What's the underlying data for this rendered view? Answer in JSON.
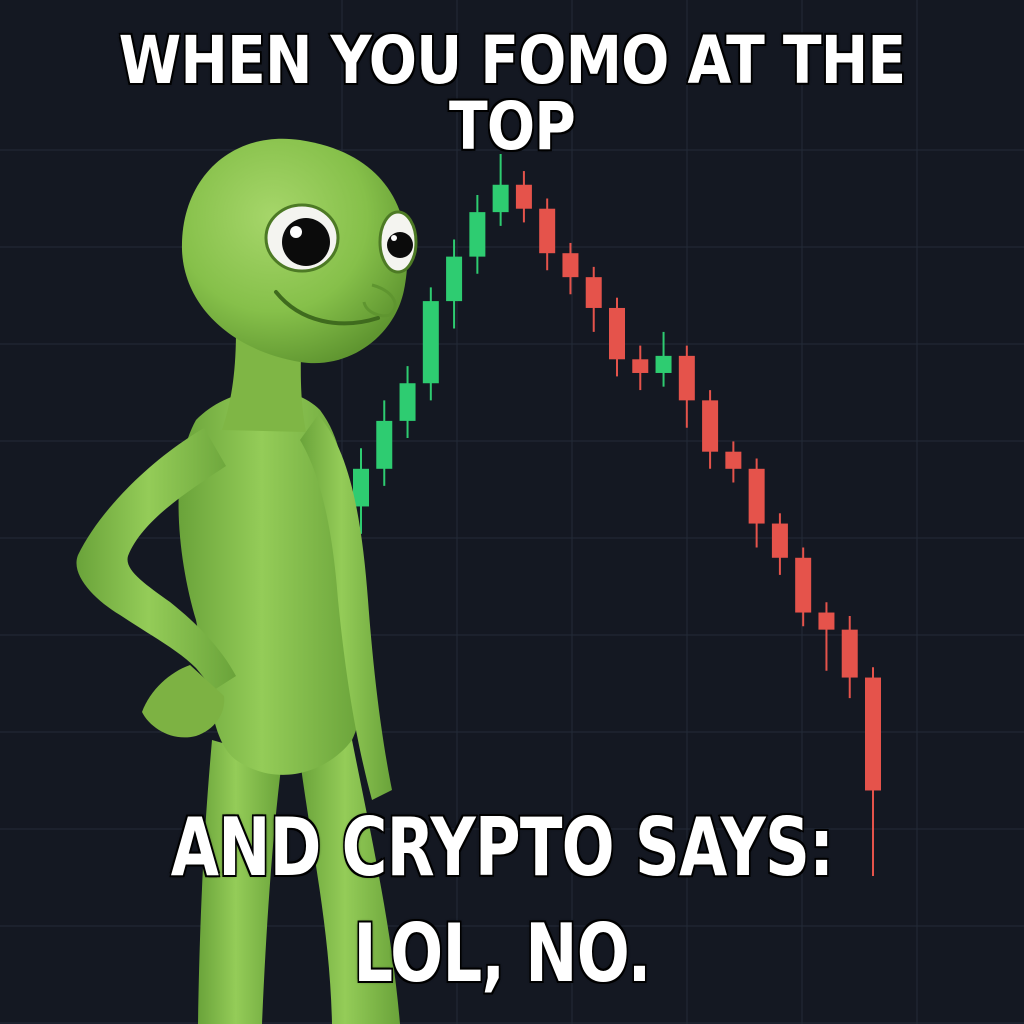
{
  "meme": {
    "top_text": "WHEN YOU FOMO AT THE TOP",
    "bottom_line_1": "AND CRYPTO SAYS:",
    "bottom_line_2": "LOL, NO."
  },
  "character": {
    "icon": "green-alien-icon",
    "color": "#86c04a"
  },
  "colors": {
    "background": "#141822",
    "grid": "#232a38",
    "up": "#2ecc71",
    "down": "#e5534b"
  },
  "chart_data": {
    "type": "candlestick",
    "candles": [
      {
        "dir": "up",
        "open": 20,
        "close": 31,
        "high": 37,
        "low": 12
      },
      {
        "dir": "up",
        "open": 31,
        "close": 45,
        "high": 51,
        "low": 26
      },
      {
        "dir": "up",
        "open": 45,
        "close": 56,
        "high": 61,
        "low": 40
      },
      {
        "dir": "up",
        "open": 56,
        "close": 80,
        "high": 84,
        "low": 51
      },
      {
        "dir": "up",
        "open": 80,
        "close": 93,
        "high": 98,
        "low": 72
      },
      {
        "dir": "up",
        "open": 93,
        "close": 106,
        "high": 111,
        "low": 88
      },
      {
        "dir": "up",
        "open": 106,
        "close": 114,
        "high": 123,
        "low": 102
      },
      {
        "dir": "down",
        "open": 114,
        "close": 107,
        "high": 118,
        "low": 103
      },
      {
        "dir": "down",
        "open": 107,
        "close": 94,
        "high": 110,
        "low": 89
      },
      {
        "dir": "down",
        "open": 94,
        "close": 87,
        "high": 97,
        "low": 82
      },
      {
        "dir": "down",
        "open": 87,
        "close": 78,
        "high": 90,
        "low": 71
      },
      {
        "dir": "down",
        "open": 78,
        "close": 63,
        "high": 81,
        "low": 58
      },
      {
        "dir": "down",
        "open": 63,
        "close": 59,
        "high": 67,
        "low": 54
      },
      {
        "dir": "up",
        "open": 59,
        "close": 64,
        "high": 71,
        "low": 55
      },
      {
        "dir": "down",
        "open": 64,
        "close": 51,
        "high": 67,
        "low": 43
      },
      {
        "dir": "down",
        "open": 51,
        "close": 36,
        "high": 54,
        "low": 31
      },
      {
        "dir": "down",
        "open": 36,
        "close": 31,
        "high": 39,
        "low": 27
      },
      {
        "dir": "down",
        "open": 31,
        "close": 15,
        "high": 34,
        "low": 8
      },
      {
        "dir": "down",
        "open": 15,
        "close": 5,
        "high": 18,
        "low": 0
      },
      {
        "dir": "down",
        "open": 5,
        "close": -11,
        "high": 8,
        "low": -15
      },
      {
        "dir": "down",
        "open": -11,
        "close": -16,
        "high": -8,
        "low": -28
      },
      {
        "dir": "down",
        "open": -16,
        "close": -30,
        "high": -12,
        "low": -36
      },
      {
        "dir": "down",
        "open": -30,
        "close": -63,
        "high": -27,
        "low": -88
      }
    ],
    "ylim": [
      -95,
      130
    ],
    "grid": true
  }
}
